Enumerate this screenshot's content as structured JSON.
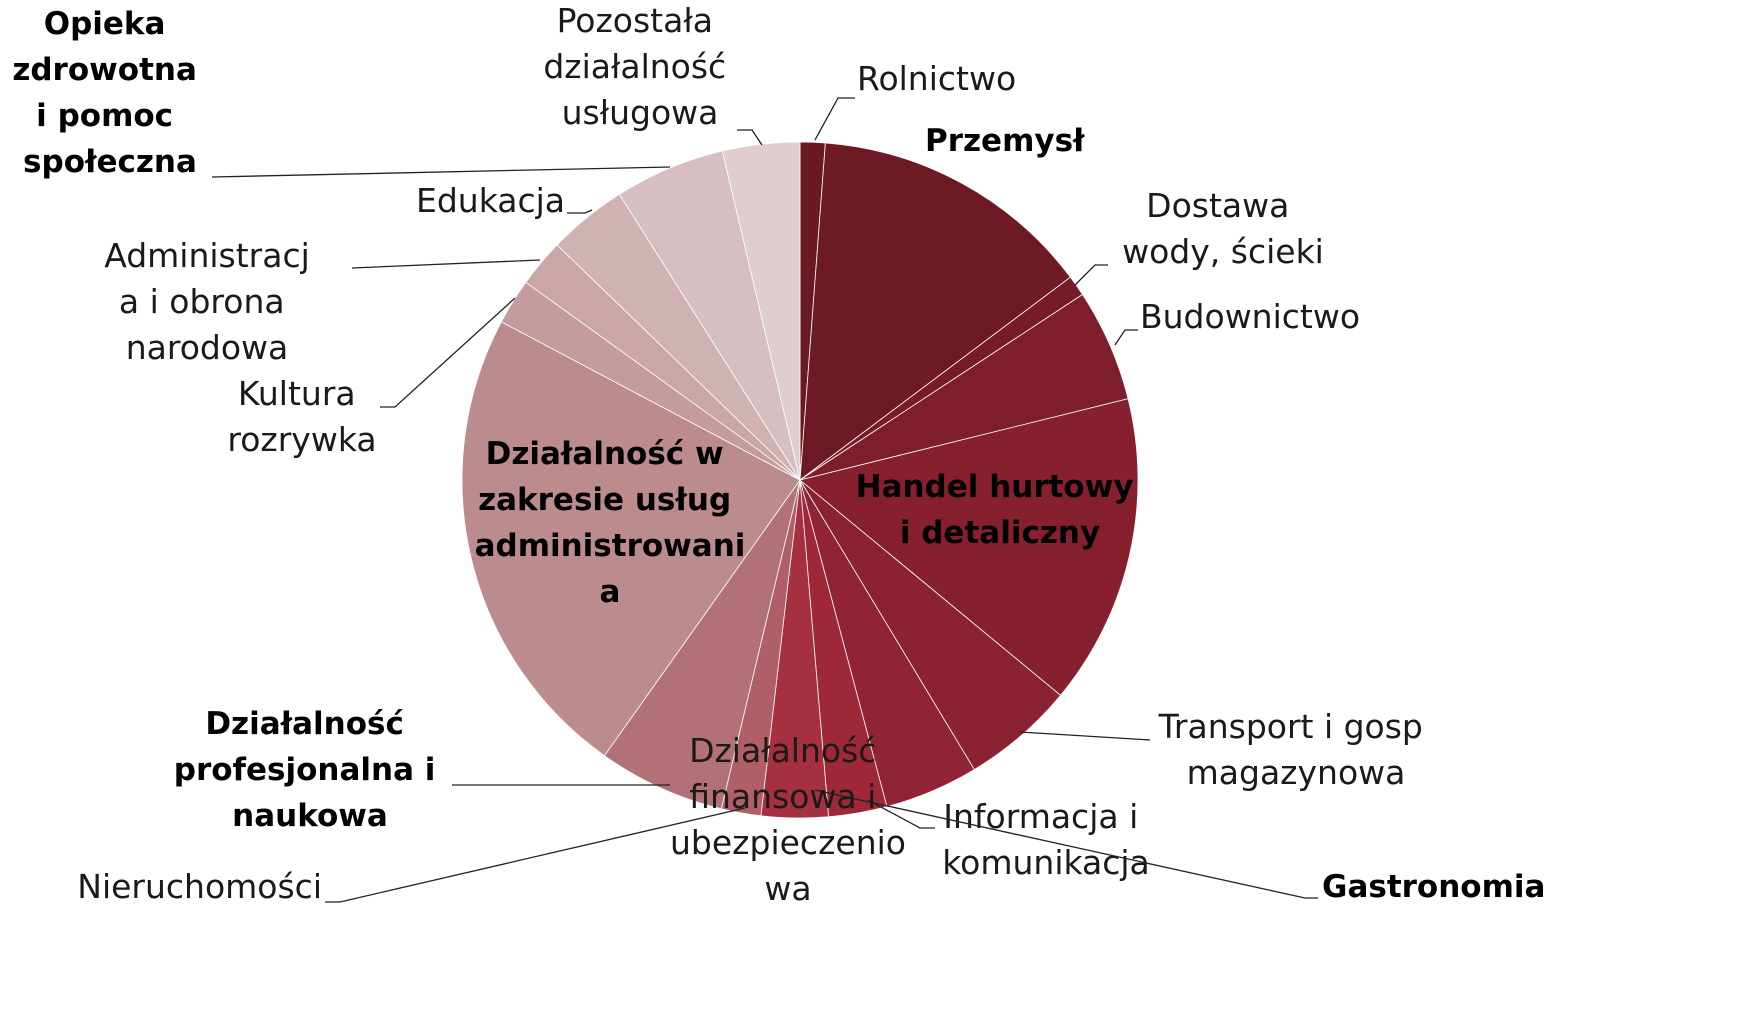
{
  "chart_data": {
    "type": "pie",
    "categories": [
      "Rolnictwo",
      "Przemysł",
      "Dostawa wody, ścieki",
      "Budownictwo",
      "Handel hurtowy i detaliczny",
      "Transport i gosp magazynowa",
      "Informacja i komunikacja",
      "Gastronomia",
      "Działalność finansowa i ubezpieczeniowa",
      "Nieruchomości",
      "Działalność profesjonalna i naukowa",
      "Działalność w zakresie usług administrowania",
      "Kultura rozrywka",
      "Administracja i obrona narodowa",
      "Edukacja",
      "Opieka zdrowotna i pomoc społeczna",
      "Pozostała działalność usługowa"
    ],
    "values": [
      1.2,
      13.6,
      1.0,
      5.4,
      14.9,
      5.4,
      4.5,
      2.8,
      3.2,
      1.9,
      6.1,
      23.0,
      2.2,
      2.3,
      3.8,
      5.3,
      3.7
    ],
    "colors": [
      "#6a1922",
      "#6d1a24",
      "#761c27",
      "#7e1e2a",
      "#86202e",
      "#8b2231",
      "#912434",
      "#9e2838",
      "#a6303f",
      "#b05e67",
      "#b17176",
      "#bb8b8e",
      "#c49c9f",
      "#caa6a9",
      "#d0b1b4",
      "#d7bec0",
      "#dfcdcf"
    ]
  }
}
